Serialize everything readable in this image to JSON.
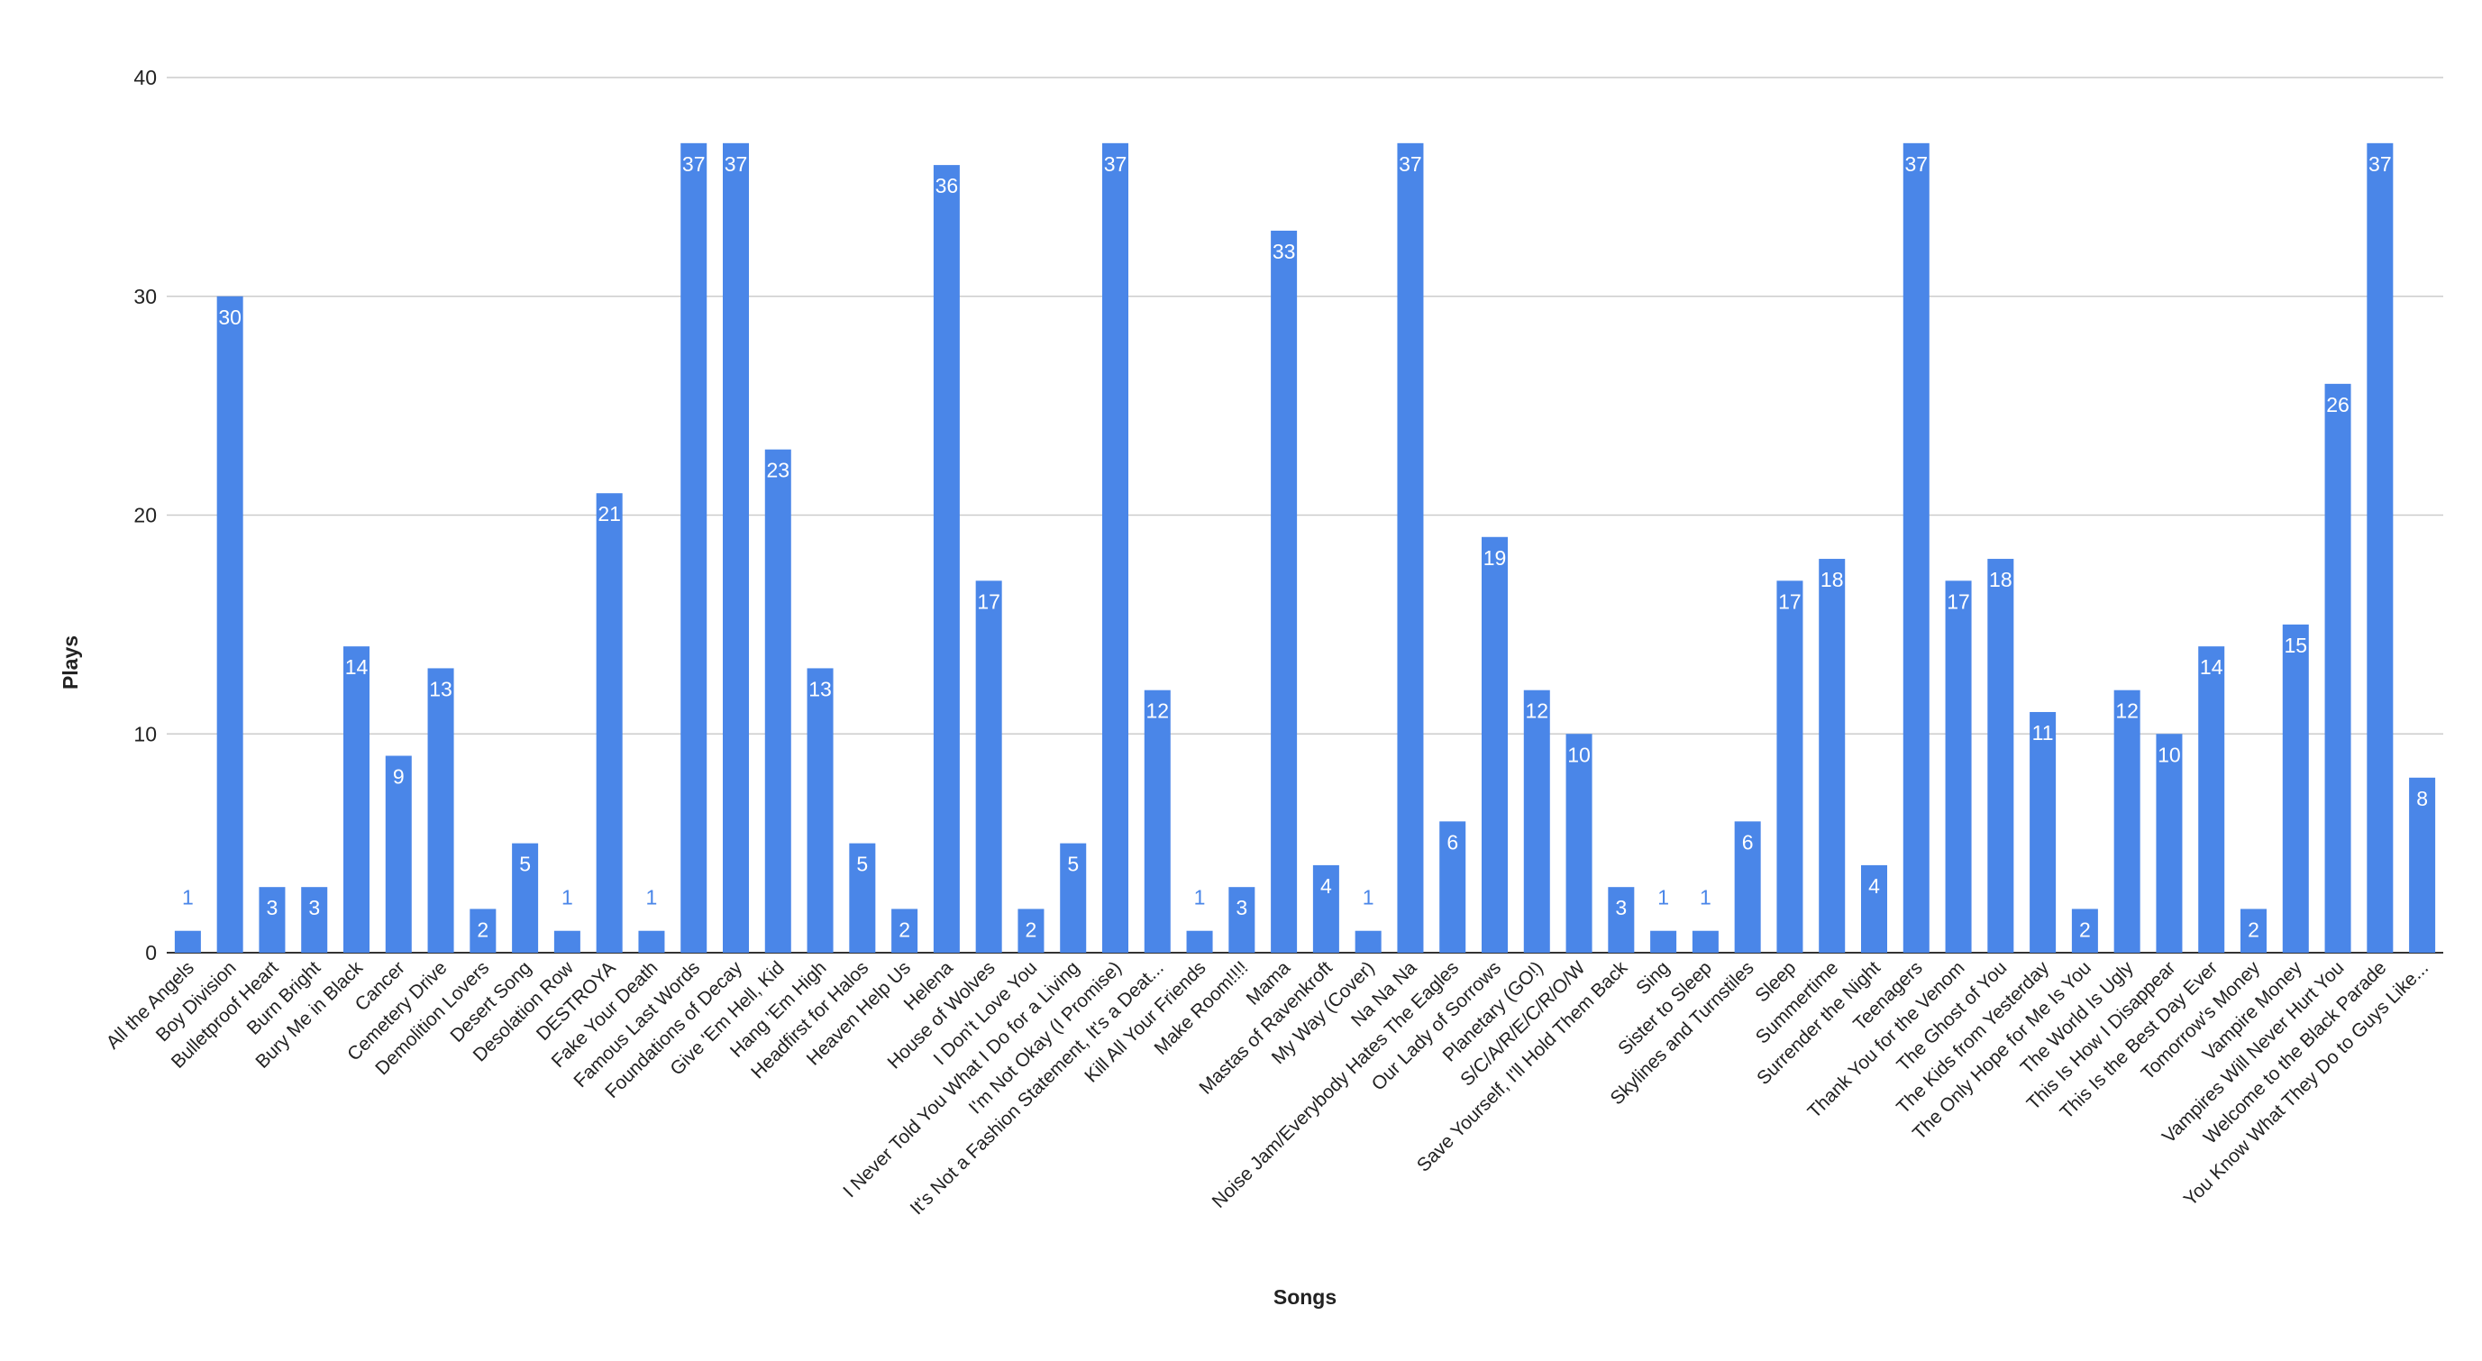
{
  "chart_data": {
    "type": "bar",
    "title": "",
    "xlabel": "Songs",
    "ylabel": "Plays",
    "ylim": [
      0,
      40
    ],
    "yticks": [
      0,
      10,
      20,
      30,
      40
    ],
    "grid": true,
    "legend": "none",
    "bar_color": "#4a86e8",
    "label_outside_color": "#4a86e8",
    "label_inside_color": "#ffffff",
    "categories": [
      "All the Angels",
      "Boy Division",
      "Bulletproof Heart",
      "Burn Bright",
      "Bury Me in Black",
      "Cancer",
      "Cemetery Drive",
      "Demolition Lovers",
      "Desert Song",
      "Desolation Row",
      "DESTROYA",
      "Fake Your Death",
      "Famous Last Words",
      "Foundations of Decay",
      "Give 'Em Hell, Kid",
      "Hang 'Em High",
      "Headfirst for Halos",
      "Heaven Help Us",
      "Helena",
      "House of Wolves",
      "I Don't Love You",
      "I Never Told You What I Do for a Living",
      "I'm Not Okay (I Promise)",
      "It's Not a Fashion Statement, It's a Deat...",
      "Kill All Your Friends",
      "Make Room!!!!",
      "Mama",
      "Mastas of Ravenkroft",
      "My Way (Cover)",
      "Na Na Na",
      "Noise Jam/Everybody Hates The Eagles",
      "Our Lady of Sorrows",
      "Planetary (GO!)",
      "S/C/A/R/E/C/R/O/W",
      "Save Yourself, I'll Hold Them Back",
      "Sing",
      "Sister to Sleep",
      "Skylines and Turnstiles",
      "Sleep",
      "Summertime",
      "Surrender the Night",
      "Teenagers",
      "Thank You for the Venom",
      "The Ghost of You",
      "The Kids from Yesterday",
      "The Only Hope for Me Is You",
      "The World Is Ugly",
      "This Is How I Disappear",
      "This Is the Best Day Ever",
      "Tomorrow's Money",
      "Vampire Money",
      "Vampires Will Never Hurt You",
      "Welcome to the Black Parade",
      "You Know What They Do to Guys Like..."
    ],
    "values": [
      1,
      30,
      3,
      3,
      14,
      9,
      13,
      2,
      5,
      1,
      21,
      1,
      37,
      37,
      23,
      13,
      5,
      2,
      36,
      17,
      2,
      5,
      37,
      12,
      1,
      3,
      33,
      4,
      1,
      37,
      6,
      19,
      12,
      10,
      3,
      1,
      1,
      6,
      17,
      18,
      4,
      37,
      17,
      18,
      11,
      2,
      12,
      10,
      14,
      2,
      15,
      26,
      37,
      8
    ]
  }
}
